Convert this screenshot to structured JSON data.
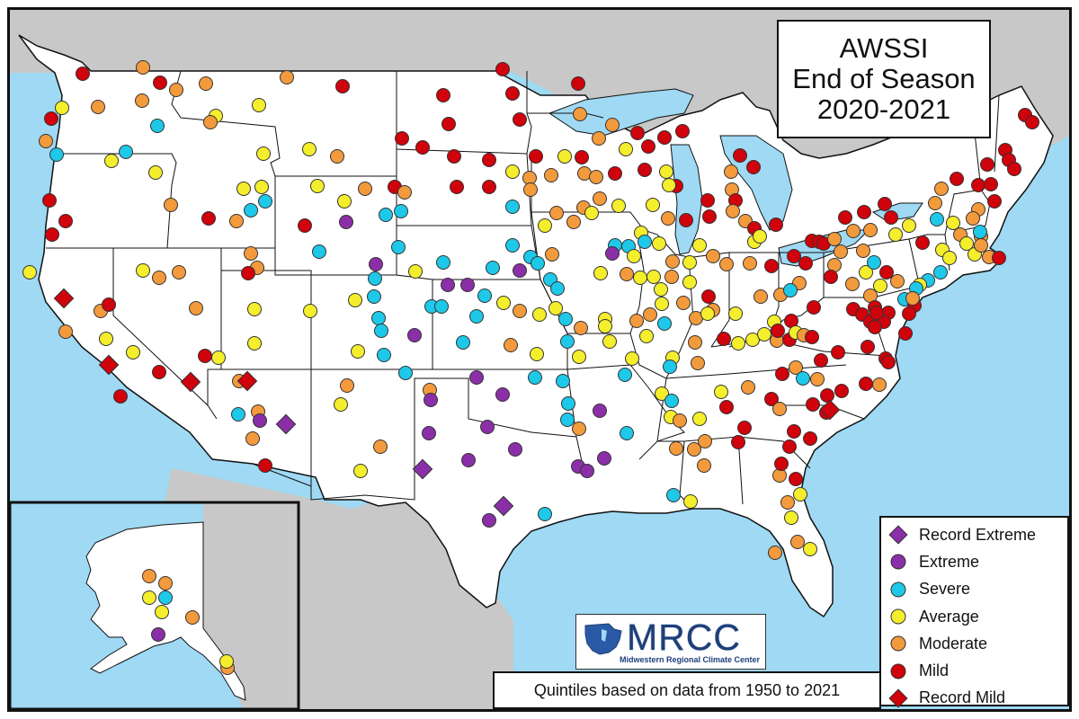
{
  "title": {
    "line1": "AWSSI",
    "line2": "End of Season",
    "line3": "2020-2021"
  },
  "legend": [
    {
      "label": "Record Extreme",
      "symbol": "diamond",
      "color": "#8b2fa8",
      "icon": "purple-diamond-icon"
    },
    {
      "label": "Extreme",
      "symbol": "circle",
      "color": "#8b2fa8",
      "icon": "purple-circle-icon"
    },
    {
      "label": "Severe",
      "symbol": "circle",
      "color": "#1ec8e8",
      "icon": "cyan-circle-icon"
    },
    {
      "label": "Average",
      "symbol": "circle",
      "color": "#f4ee2c",
      "icon": "yellow-circle-icon"
    },
    {
      "label": "Moderate",
      "symbol": "circle",
      "color": "#f29a3c",
      "icon": "orange-circle-icon"
    },
    {
      "label": "Mild",
      "symbol": "circle",
      "color": "#d0020b",
      "icon": "red-circle-icon"
    },
    {
      "label": "Record Mild",
      "symbol": "diamond",
      "color": "#d0020b",
      "icon": "red-diamond-icon"
    }
  ],
  "caption": "Quintiles based on data from 1950 to 2021",
  "logo": {
    "name": "MRCC",
    "subtitle": "Midwestern Regional Climate Center"
  },
  "colors": {
    "water": "#9fd9f3",
    "land_us": "#ffffff",
    "land_other": "#c8c8c8",
    "border": "#111111"
  }
}
